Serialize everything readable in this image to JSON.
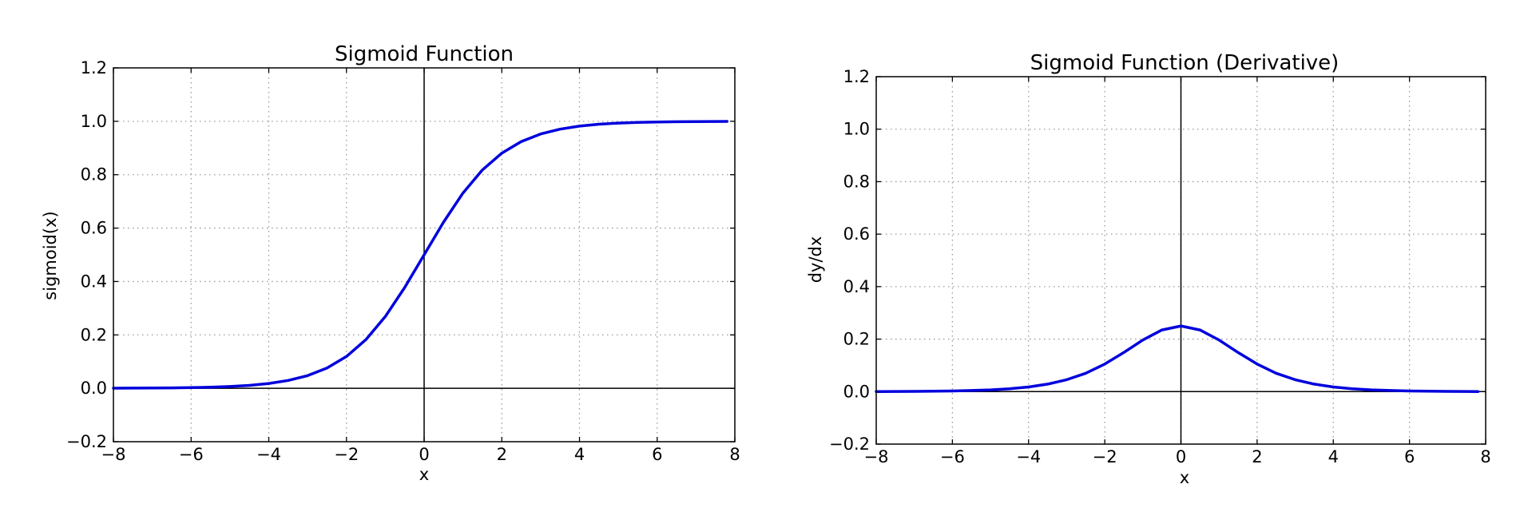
{
  "chart_data": [
    {
      "type": "line",
      "title": "Sigmoid Function",
      "xlabel": "x",
      "ylabel": "sigmoid(x)",
      "xlim": [
        -8,
        8
      ],
      "ylim": [
        -0.2,
        1.2
      ],
      "xticks": [
        -8,
        -6,
        -4,
        -2,
        0,
        2,
        4,
        6,
        8
      ],
      "yticks": [
        -0.2,
        0.0,
        0.2,
        0.4,
        0.6,
        0.8,
        1.0,
        1.2
      ],
      "xtick_labels": [
        "−8",
        "−6",
        "−4",
        "−2",
        "0",
        "2",
        "4",
        "6",
        "8"
      ],
      "ytick_labels": [
        "−0.2",
        "0.0",
        "0.2",
        "0.4",
        "0.6",
        "0.8",
        "1.0",
        "1.2"
      ],
      "grid": true,
      "color": "#0000dd",
      "series": [
        {
          "x": [
            -8.0,
            -7.5,
            -7.0,
            -6.5,
            -6.0,
            -5.5,
            -5.0,
            -4.5,
            -4.0,
            -3.5,
            -3.0,
            -2.5,
            -2.0,
            -1.5,
            -1.0,
            -0.5,
            0.0,
            0.5,
            1.0,
            1.5,
            2.0,
            2.5,
            3.0,
            3.5,
            4.0,
            4.5,
            5.0,
            5.5,
            6.0,
            6.5,
            7.0,
            7.5,
            7.8
          ],
          "y": [
            0.0003,
            0.0006,
            0.0009,
            0.0015,
            0.0025,
            0.0041,
            0.0067,
            0.011,
            0.018,
            0.0293,
            0.0474,
            0.0759,
            0.1192,
            0.1824,
            0.2689,
            0.3775,
            0.5,
            0.6225,
            0.7311,
            0.8176,
            0.8808,
            0.9241,
            0.9526,
            0.9707,
            0.982,
            0.989,
            0.9933,
            0.9959,
            0.9975,
            0.9985,
            0.9991,
            0.9994,
            0.9996
          ]
        }
      ]
    },
    {
      "type": "line",
      "title": "Sigmoid Function (Derivative)",
      "xlabel": "x",
      "ylabel": "dy/dx",
      "xlim": [
        -8,
        8
      ],
      "ylim": [
        -0.2,
        1.2
      ],
      "xticks": [
        -8,
        -6,
        -4,
        -2,
        0,
        2,
        4,
        6,
        8
      ],
      "yticks": [
        -0.2,
        0.0,
        0.2,
        0.4,
        0.6,
        0.8,
        1.0,
        1.2
      ],
      "xtick_labels": [
        "−8",
        "−6",
        "−4",
        "−2",
        "0",
        "2",
        "4",
        "6",
        "8"
      ],
      "ytick_labels": [
        "−0.2",
        "0.0",
        "0.2",
        "0.4",
        "0.6",
        "0.8",
        "1.0",
        "1.2"
      ],
      "grid": true,
      "color": "#0000dd",
      "series": [
        {
          "x": [
            -8.0,
            -7.5,
            -7.0,
            -6.5,
            -6.0,
            -5.5,
            -5.0,
            -4.5,
            -4.0,
            -3.5,
            -3.0,
            -2.5,
            -2.0,
            -1.5,
            -1.0,
            -0.5,
            0.0,
            0.5,
            1.0,
            1.5,
            2.0,
            2.5,
            3.0,
            3.5,
            4.0,
            4.5,
            5.0,
            5.5,
            6.0,
            6.5,
            7.0,
            7.5,
            7.8
          ],
          "y": [
            0.0003,
            0.0006,
            0.0009,
            0.0015,
            0.0025,
            0.0041,
            0.0066,
            0.0109,
            0.0177,
            0.0285,
            0.0452,
            0.0701,
            0.105,
            0.1491,
            0.1966,
            0.235,
            0.25,
            0.235,
            0.1966,
            0.1491,
            0.105,
            0.0701,
            0.0452,
            0.0285,
            0.0177,
            0.0109,
            0.0066,
            0.0041,
            0.0025,
            0.0015,
            0.0009,
            0.0006,
            0.0004
          ]
        }
      ]
    }
  ]
}
